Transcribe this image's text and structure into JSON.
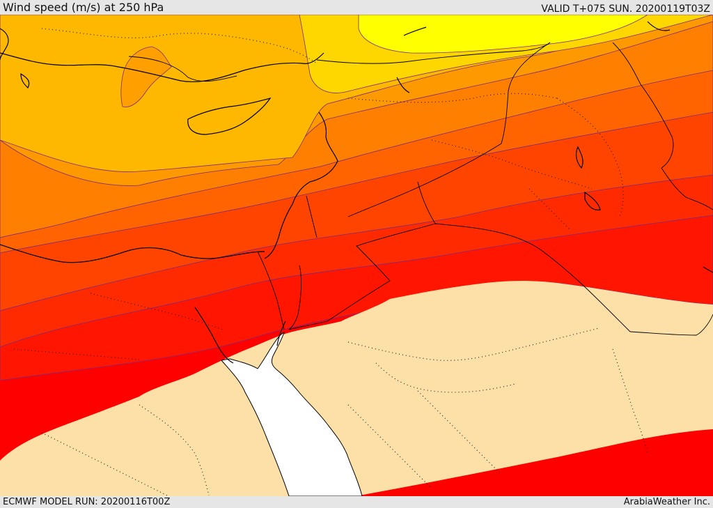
{
  "header": {
    "title": "Wind speed (m/s) at 250 hPa",
    "valid": "VALID T+075 SUN. 20200119T03Z"
  },
  "footer": {
    "model_run": "ECMWF MODEL RUN: 20200116T00Z",
    "credit": "ArabiaWeather Inc."
  },
  "map": {
    "variable": "wind speed",
    "level": "250 hPa",
    "colors": {
      "band_yellow": "#ffff00",
      "band_gold": "#ffd700",
      "band_amber": "#ffb800",
      "band_orange1": "#ff9900",
      "band_orange2": "#ff7f00",
      "band_orange3": "#ff6400",
      "band_redorange": "#ff4400",
      "band_red1": "#ff2a00",
      "band_red2": "#ff1500",
      "band_red3": "#ff0000",
      "low_wind": "#fde0a8",
      "sea": "#ffffff"
    }
  }
}
